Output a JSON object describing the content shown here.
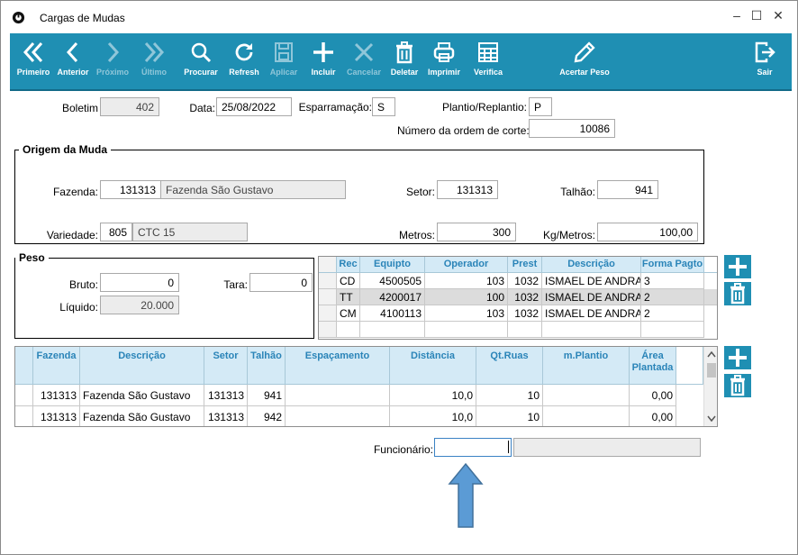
{
  "window": {
    "title": "Cargas de Mudas"
  },
  "toolbar": {
    "buttons": [
      {
        "label": "Primeiro",
        "enabled": true,
        "icon": "double-chevron-left-icon"
      },
      {
        "label": "Anterior",
        "enabled": true,
        "icon": "chevron-left-icon"
      },
      {
        "label": "Próximo",
        "enabled": false,
        "icon": "chevron-right-icon"
      },
      {
        "label": "Último",
        "enabled": false,
        "icon": "double-chevron-right-icon"
      },
      {
        "label": "Procurar",
        "enabled": true,
        "icon": "search-icon"
      },
      {
        "label": "Refresh",
        "enabled": true,
        "icon": "refresh-icon"
      },
      {
        "label": "Aplicar",
        "enabled": false,
        "icon": "save-icon"
      },
      {
        "label": "Incluir",
        "enabled": true,
        "icon": "plus-icon"
      },
      {
        "label": "Cancelar",
        "enabled": false,
        "icon": "x-icon"
      },
      {
        "label": "Deletar",
        "enabled": true,
        "icon": "trash-icon"
      },
      {
        "label": "Imprimir",
        "enabled": true,
        "icon": "printer-icon"
      },
      {
        "label": "Verifica",
        "enabled": true,
        "icon": "grid-icon"
      },
      {
        "label": "Acertar Peso",
        "enabled": true,
        "icon": "pencil-icon"
      },
      {
        "label": "Sair",
        "enabled": true,
        "icon": "exit-icon"
      }
    ]
  },
  "header": {
    "boletim_label": "Boletim",
    "boletim": "402",
    "data_label": "Data:",
    "data": "25/08/2022",
    "esparramacao_label": "Esparramação:",
    "esparramacao": "S",
    "plantio_label": "Plantio/Replantio:",
    "plantio": "P",
    "ordem_label": "Número da ordem de corte:",
    "ordem": "10086"
  },
  "origem": {
    "title": "Origem da Muda",
    "fazenda_label": "Fazenda:",
    "fazenda_code": "131313",
    "fazenda_name": "Fazenda São Gustavo",
    "setor_label": "Setor:",
    "setor": "131313",
    "talhao_label": "Talhão:",
    "talhao": "941",
    "variedade_label": "Variedade:",
    "variedade_code": "805",
    "variedade_name": "CTC 15",
    "metros_label": "Metros:",
    "metros": "300",
    "kgmetros_label": "Kg/Metros:",
    "kgmetros": "100,00"
  },
  "peso": {
    "title": "Peso",
    "bruto_label": "Bruto:",
    "bruto": "0",
    "tara_label": "Tara:",
    "tara": "0",
    "liquido_label": "Líquido:",
    "liquido": "20.000"
  },
  "equip_grid": {
    "headers": [
      "Rec",
      "Equipto",
      "Operador",
      "Prest",
      "Descrição",
      "Forma Pagto"
    ],
    "rows": [
      [
        "CD",
        "4500505",
        "103",
        "1032",
        "ISMAEL DE ANDRADE",
        "3"
      ],
      [
        "TT",
        "4200017",
        "100",
        "1032",
        "ISMAEL DE ANDRADE",
        "2"
      ],
      [
        "CM",
        "4100113",
        "103",
        "1032",
        "ISMAEL DE ANDRADE",
        "2"
      ]
    ]
  },
  "dest_grid": {
    "headers": [
      "Fazenda",
      "Descrição",
      "Setor",
      "Talhão",
      "Espaçamento",
      "Distância",
      "Qt.Ruas",
      "m.Plantio",
      "Área Plantada"
    ],
    "rows": [
      [
        "131313",
        "Fazenda São Gustavo",
        "131313",
        "941",
        "",
        "10,0",
        "10",
        "",
        "0,00"
      ],
      [
        "131313",
        "Fazenda São Gustavo",
        "131313",
        "942",
        "",
        "10,0",
        "10",
        "",
        "0,00"
      ]
    ]
  },
  "funcionario": {
    "label": "Funcionário:",
    "value": "",
    "name": ""
  },
  "colors": {
    "accent": "#1f8fb3",
    "header_bg": "#d4eaf6",
    "header_text": "#2a84b8",
    "arrow": "#5b9bd5"
  }
}
